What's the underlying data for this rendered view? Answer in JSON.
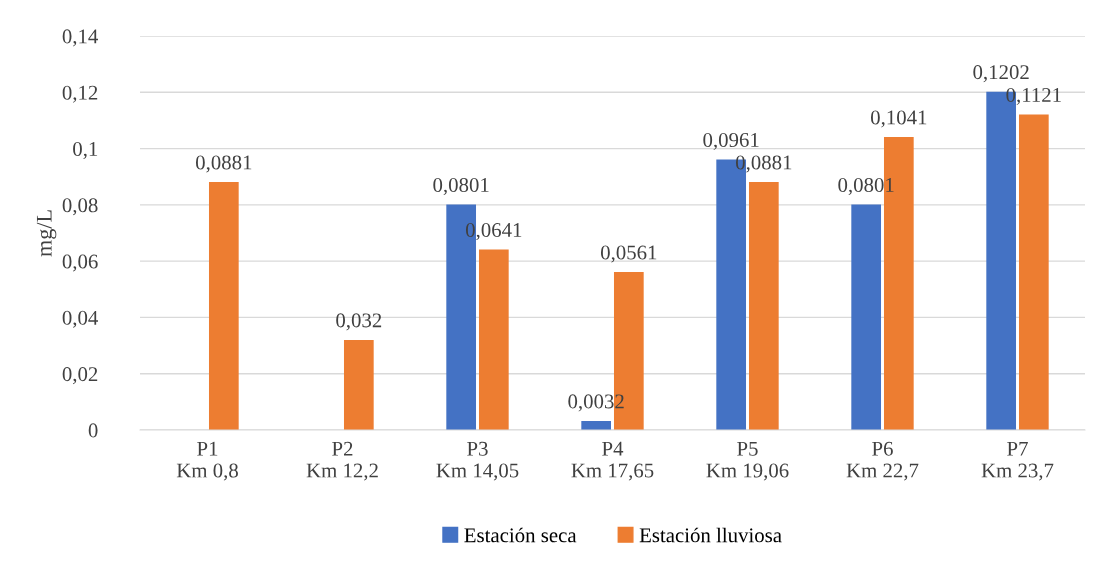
{
  "chart_data": {
    "type": "bar",
    "ylabel": "mg/L",
    "categories": [
      "P1\nKm 0,8",
      "P2\nKm 12,2",
      "P3\nKm 14,05",
      "P4\nKm 17,65",
      "P5\nKm 19,06",
      "P6\nKm 22,7",
      "P7\nKm 23,7"
    ],
    "series": [
      {
        "name": "Estación seca",
        "color": "#4472c4",
        "values": [
          null,
          null,
          0.0801,
          0.0032,
          0.0961,
          0.0801,
          0.1202
        ],
        "value_labels": [
          null,
          null,
          "0,0801",
          "0,0032",
          "0,0961",
          "0,0801",
          "0,1202"
        ]
      },
      {
        "name": "Estación lluviosa",
        "color": "#ed7d31",
        "values": [
          0.0881,
          0.032,
          0.0641,
          0.0561,
          0.0881,
          0.1041,
          0.1121
        ],
        "value_labels": [
          "0,0881",
          "0,032",
          "0,0641",
          "0,0561",
          "0,0881",
          "0,1041",
          "0,1121"
        ]
      }
    ],
    "ylim": [
      0,
      0.14
    ],
    "yticks": [
      0,
      {
        "value": 0.02,
        "label": "0,02"
      },
      {
        "value": 0.04,
        "label": "0,04"
      },
      {
        "value": 0.06,
        "label": "0,06"
      },
      {
        "value": 0.08,
        "label": "0,08"
      },
      {
        "value": 0.1,
        "label": "0,1"
      },
      {
        "value": 0.12,
        "label": "0,12"
      },
      {
        "value": 0.14,
        "label": "0,14"
      }
    ],
    "grid": "y",
    "legend": "bottom"
  }
}
